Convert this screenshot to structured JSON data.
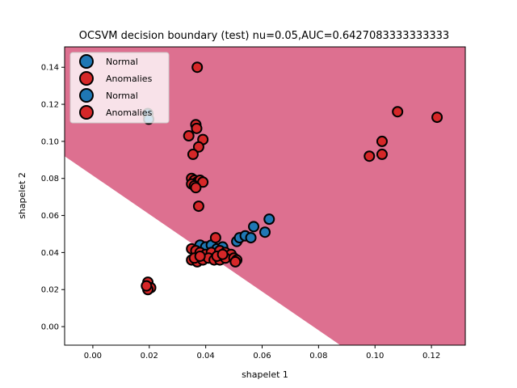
{
  "chart_data": {
    "type": "scatter",
    "title": "OCSVM decision boundary (test) nu=0.05,AUC=0.6427083333333333",
    "xlabel": "shapelet 1",
    "ylabel": "shapelet 2",
    "xlim": [
      -0.01,
      0.132
    ],
    "ylim": [
      -0.01,
      0.151
    ],
    "xticks": [
      0.0,
      0.02,
      0.04,
      0.06,
      0.08,
      0.1,
      0.12
    ],
    "yticks": [
      0.0,
      0.02,
      0.04,
      0.06,
      0.08,
      0.1,
      0.12,
      0.14
    ],
    "xtick_labels": [
      "0.00",
      "0.02",
      "0.04",
      "0.06",
      "0.08",
      "0.10",
      "0.12"
    ],
    "ytick_labels": [
      "0.00",
      "0.02",
      "0.04",
      "0.06",
      "0.08",
      "0.10",
      "0.12",
      "0.14"
    ],
    "grid": false,
    "legend_position": "top-left",
    "decision_region": {
      "color": "#dd7090",
      "boundary_line": [
        [
          -0.01,
          0.092
        ],
        [
          0.0877,
          -0.01
        ]
      ]
    },
    "colors": {
      "normal": "#1f77b4",
      "anomaly": "#d62728",
      "edge": "#000000"
    },
    "series": [
      {
        "name": "Normal",
        "color": "#1f77b4",
        "points": [
          [
            0.0195,
            0.115
          ],
          [
            0.0198,
            0.112
          ],
          [
            0.038,
            0.044
          ],
          [
            0.04,
            0.043
          ],
          [
            0.042,
            0.044
          ],
          [
            0.044,
            0.042
          ],
          [
            0.046,
            0.043
          ],
          [
            0.051,
            0.046
          ],
          [
            0.052,
            0.048
          ],
          [
            0.054,
            0.049
          ],
          [
            0.056,
            0.048
          ],
          [
            0.057,
            0.054
          ],
          [
            0.061,
            0.051
          ],
          [
            0.0625,
            0.058
          ]
        ]
      },
      {
        "name": "Anomalies",
        "color": "#d62728",
        "points": [
          [
            0.037,
            0.14
          ],
          [
            0.0365,
            0.109
          ],
          [
            0.0368,
            0.107
          ],
          [
            0.034,
            0.103
          ],
          [
            0.039,
            0.101
          ],
          [
            0.0375,
            0.097
          ],
          [
            0.0355,
            0.093
          ],
          [
            0.035,
            0.08
          ],
          [
            0.036,
            0.079
          ],
          [
            0.037,
            0.078
          ],
          [
            0.038,
            0.079
          ],
          [
            0.039,
            0.078
          ],
          [
            0.035,
            0.077
          ],
          [
            0.036,
            0.076
          ],
          [
            0.0365,
            0.075
          ],
          [
            0.0375,
            0.065
          ],
          [
            0.0195,
            0.024
          ],
          [
            0.0205,
            0.021
          ],
          [
            0.0195,
            0.02
          ],
          [
            0.019,
            0.022
          ],
          [
            0.035,
            0.042
          ],
          [
            0.0365,
            0.041
          ],
          [
            0.038,
            0.04
          ],
          [
            0.04,
            0.039
          ],
          [
            0.042,
            0.04
          ],
          [
            0.0435,
            0.048
          ],
          [
            0.045,
            0.041
          ],
          [
            0.047,
            0.04
          ],
          [
            0.049,
            0.039
          ],
          [
            0.035,
            0.036
          ],
          [
            0.037,
            0.035
          ],
          [
            0.039,
            0.036
          ],
          [
            0.041,
            0.037
          ],
          [
            0.043,
            0.036
          ],
          [
            0.045,
            0.036
          ],
          [
            0.047,
            0.037
          ],
          [
            0.05,
            0.037
          ],
          [
            0.051,
            0.036
          ],
          [
            0.0505,
            0.035
          ],
          [
            0.036,
            0.037
          ],
          [
            0.038,
            0.038
          ],
          [
            0.044,
            0.038
          ],
          [
            0.046,
            0.039
          ],
          [
            0.098,
            0.092
          ],
          [
            0.1025,
            0.093
          ],
          [
            0.1025,
            0.1
          ],
          [
            0.108,
            0.116
          ],
          [
            0.122,
            0.113
          ]
        ]
      }
    ],
    "legend": [
      {
        "label": "Normal",
        "color": "#1f77b4"
      },
      {
        "label": "Anomalies",
        "color": "#d62728"
      },
      {
        "label": "Normal",
        "color": "#1f77b4"
      },
      {
        "label": "Anomalies",
        "color": "#d62728"
      }
    ]
  }
}
